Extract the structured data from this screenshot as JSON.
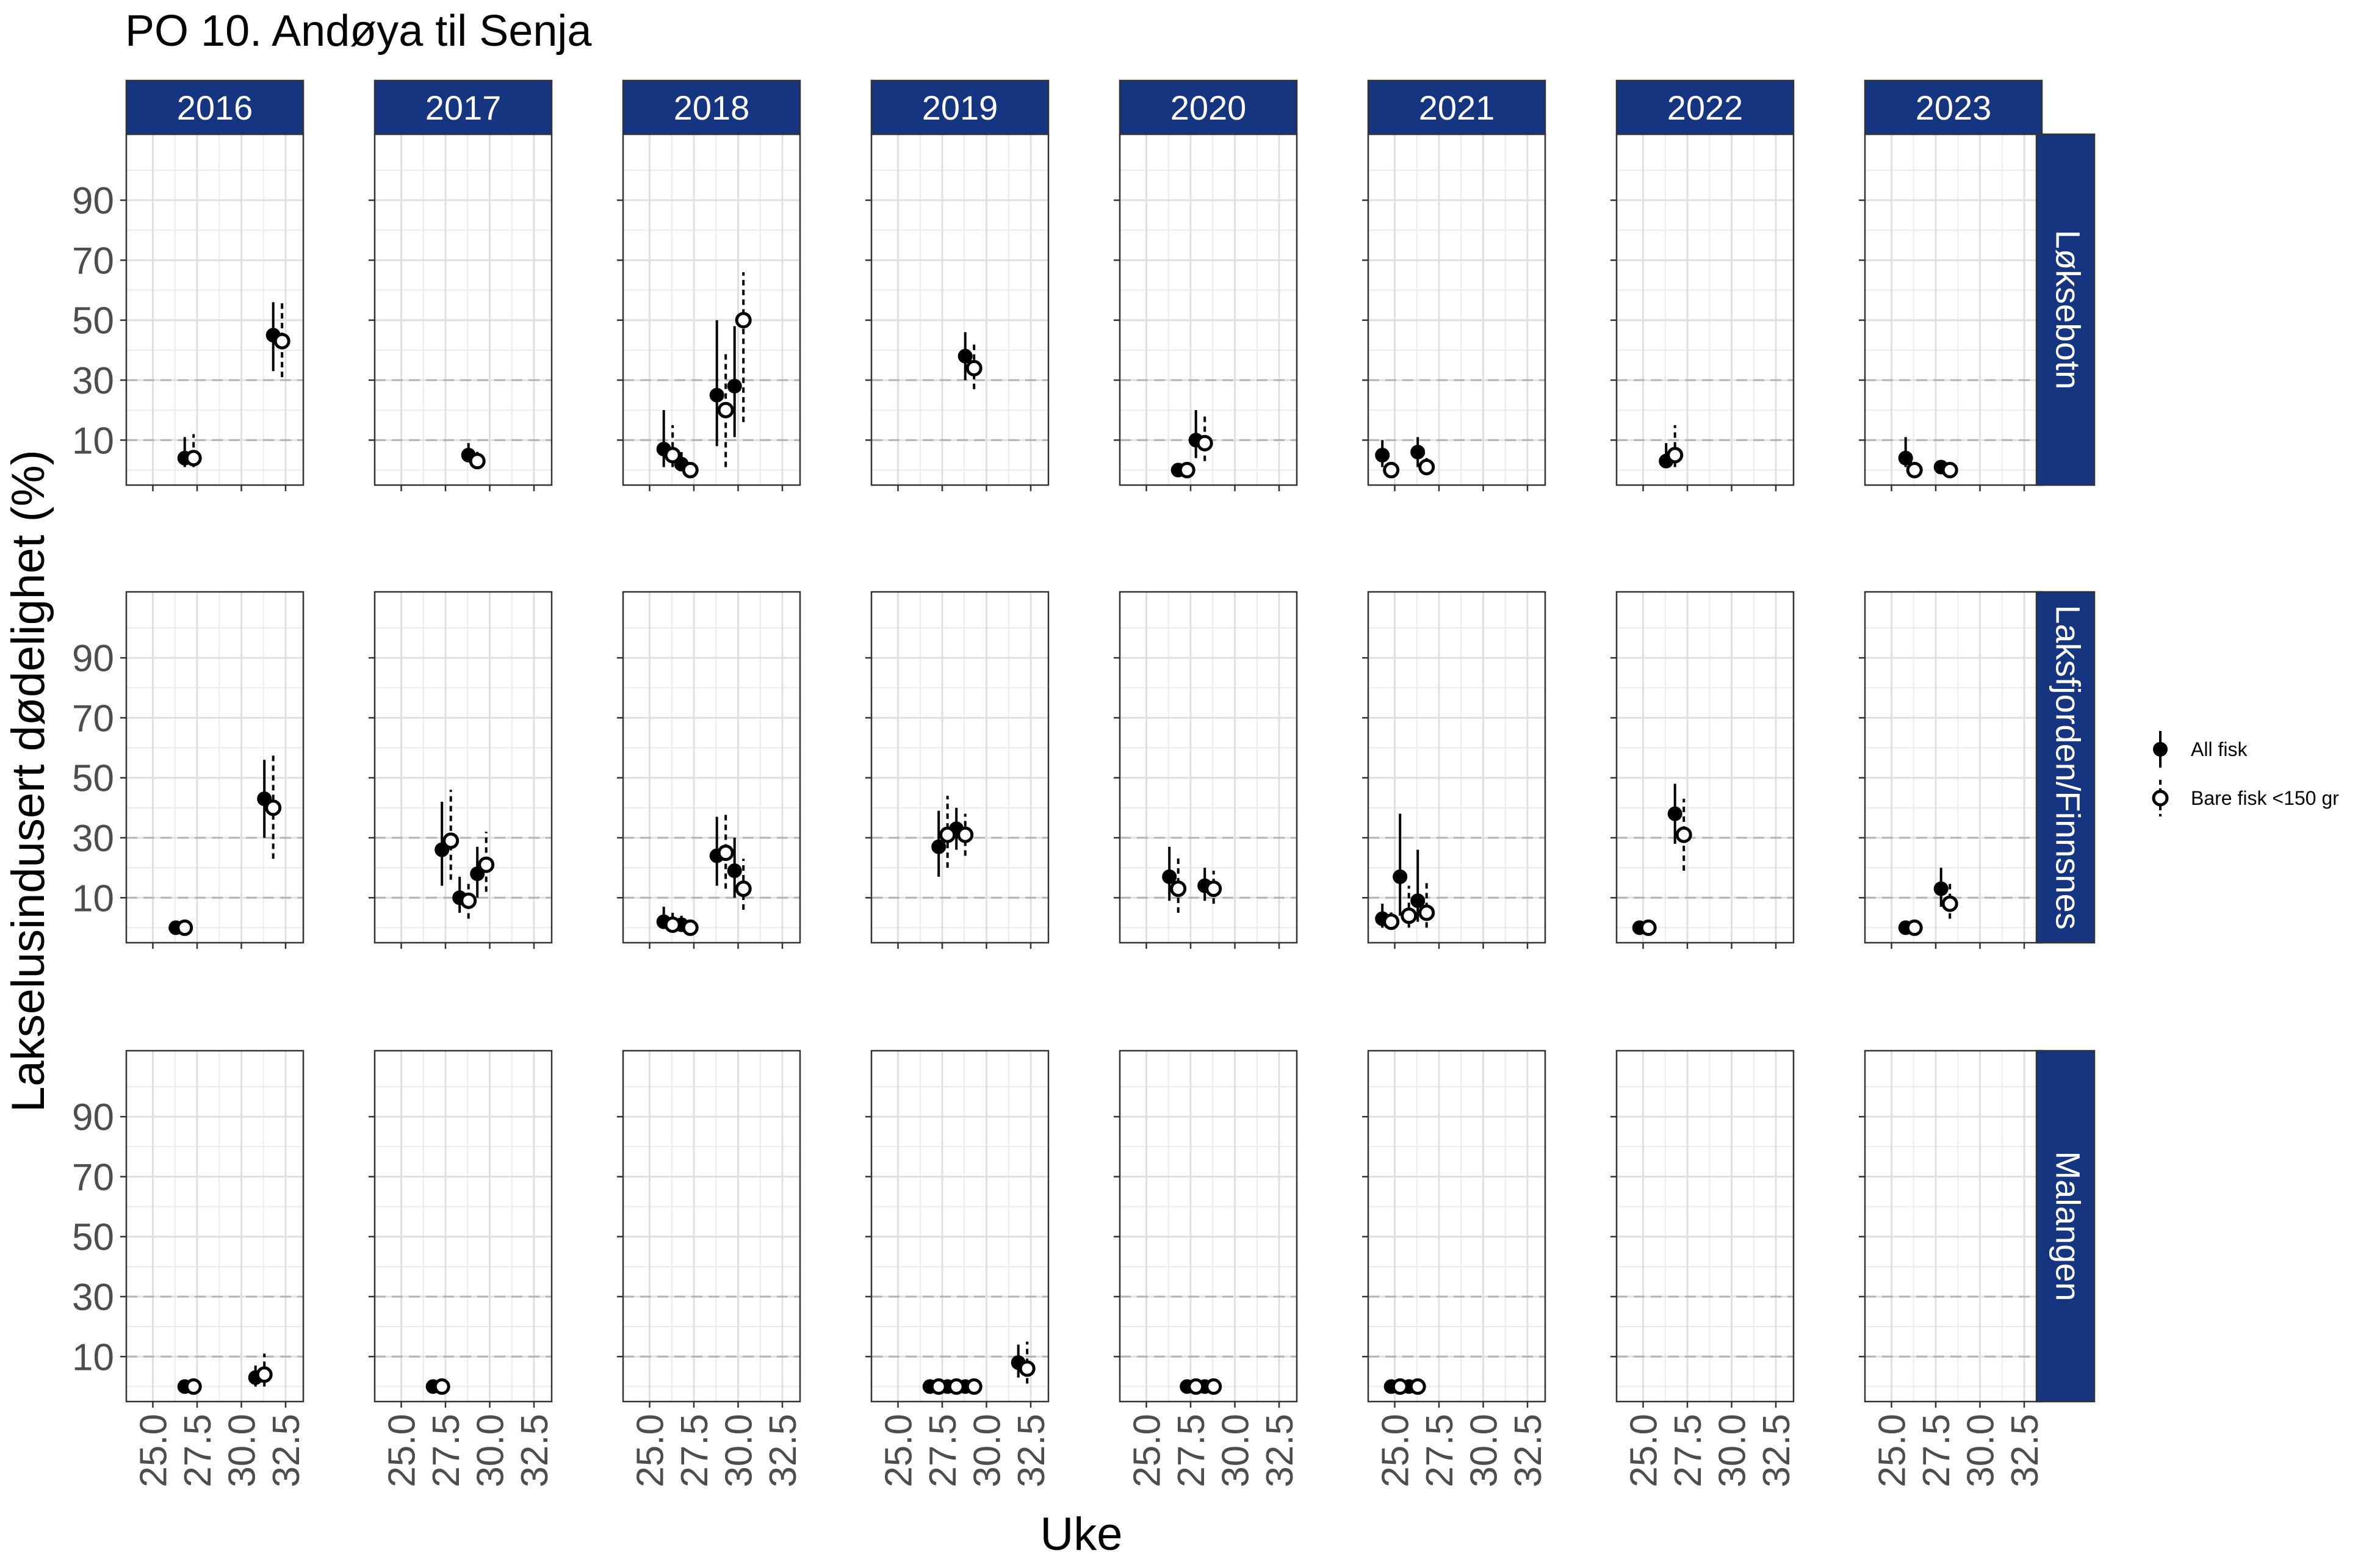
{
  "chart_data": {
    "type": "scatter",
    "title": "PO 10. Andøya til Senja",
    "xlabel": "Uke",
    "ylabel": "Lakselusindusert dødelighet (%)",
    "years": [
      "2016",
      "2017",
      "2018",
      "2019",
      "2020",
      "2021",
      "2022",
      "2023"
    ],
    "zones": [
      "Løksebotn",
      "Laksfjorden/Finnsnes",
      "Malangen"
    ],
    "xlim": [
      23.5,
      33.5
    ],
    "ylim": [
      -5,
      112
    ],
    "x_ticks": [
      "25.0",
      "27.5",
      "30.0",
      "32.5"
    ],
    "x_tick_values": [
      25,
      27.5,
      30,
      32.5
    ],
    "y_ticks": [
      "10",
      "30",
      "50",
      "70",
      "90"
    ],
    "y_tick_values": [
      10,
      30,
      50,
      70,
      90
    ],
    "reference_lines": [
      10,
      30
    ],
    "legend": {
      "position": "right",
      "items": [
        {
          "label": "All fisk",
          "style": "filled"
        },
        {
          "label": "Bare fisk <150 gr",
          "style": "open"
        }
      ]
    },
    "colors": {
      "strip": "#163581",
      "strip_text": "#ffffff",
      "reference": "#b3b3b3",
      "grid": "#ebebeb"
    },
    "series": [
      {
        "name": "All fisk",
        "points": [
          {
            "zone": "Løksebotn",
            "year": "2016",
            "x": 26.8,
            "y": 4,
            "lo": 1,
            "hi": 11
          },
          {
            "zone": "Løksebotn",
            "year": "2016",
            "x": 31.8,
            "y": 45,
            "lo": 33,
            "hi": 56
          },
          {
            "zone": "Løksebotn",
            "year": "2017",
            "x": 28.8,
            "y": 5,
            "lo": 3,
            "hi": 9
          },
          {
            "zone": "Løksebotn",
            "year": "2018",
            "x": 25.8,
            "y": 7,
            "lo": 1,
            "hi": 20
          },
          {
            "zone": "Løksebotn",
            "year": "2018",
            "x": 26.8,
            "y": 2,
            "lo": 0,
            "hi": 6
          },
          {
            "zone": "Løksebotn",
            "year": "2018",
            "x": 28.8,
            "y": 25,
            "lo": 8,
            "hi": 50
          },
          {
            "zone": "Løksebotn",
            "year": "2018",
            "x": 29.8,
            "y": 28,
            "lo": 11,
            "hi": 48
          },
          {
            "zone": "Løksebotn",
            "year": "2019",
            "x": 28.8,
            "y": 38,
            "lo": 30,
            "hi": 46
          },
          {
            "zone": "Løksebotn",
            "year": "2020",
            "x": 26.8,
            "y": 0,
            "lo": 0,
            "hi": 1
          },
          {
            "zone": "Løksebotn",
            "year": "2020",
            "x": 27.8,
            "y": 10,
            "lo": 4,
            "hi": 20
          },
          {
            "zone": "Løksebotn",
            "year": "2021",
            "x": 24.3,
            "y": 5,
            "lo": 1,
            "hi": 10
          },
          {
            "zone": "Løksebotn",
            "year": "2021",
            "x": 26.3,
            "y": 6,
            "lo": 1,
            "hi": 11
          },
          {
            "zone": "Løksebotn",
            "year": "2022",
            "x": 26.3,
            "y": 3,
            "lo": 1,
            "hi": 9
          },
          {
            "zone": "Løksebotn",
            "year": "2023",
            "x": 25.8,
            "y": 4,
            "lo": 1,
            "hi": 11
          },
          {
            "zone": "Løksebotn",
            "year": "2023",
            "x": 27.8,
            "y": 1,
            "lo": 0,
            "hi": 3
          },
          {
            "zone": "Laksfjorden/Finnsnes",
            "year": "2016",
            "x": 26.3,
            "y": 0,
            "lo": 0,
            "hi": 1
          },
          {
            "zone": "Laksfjorden/Finnsnes",
            "year": "2016",
            "x": 31.3,
            "y": 43,
            "lo": 30,
            "hi": 56
          },
          {
            "zone": "Laksfjorden/Finnsnes",
            "year": "2017",
            "x": 27.3,
            "y": 26,
            "lo": 14,
            "hi": 42
          },
          {
            "zone": "Laksfjorden/Finnsnes",
            "year": "2017",
            "x": 28.3,
            "y": 10,
            "lo": 5,
            "hi": 17
          },
          {
            "zone": "Laksfjorden/Finnsnes",
            "year": "2017",
            "x": 29.3,
            "y": 18,
            "lo": 10,
            "hi": 27
          },
          {
            "zone": "Laksfjorden/Finnsnes",
            "year": "2018",
            "x": 25.8,
            "y": 2,
            "lo": 0,
            "hi": 7
          },
          {
            "zone": "Laksfjorden/Finnsnes",
            "year": "2018",
            "x": 26.8,
            "y": 1,
            "lo": 0,
            "hi": 4
          },
          {
            "zone": "Laksfjorden/Finnsnes",
            "year": "2018",
            "x": 28.8,
            "y": 24,
            "lo": 14,
            "hi": 37
          },
          {
            "zone": "Laksfjorden/Finnsnes",
            "year": "2018",
            "x": 29.8,
            "y": 19,
            "lo": 10,
            "hi": 30
          },
          {
            "zone": "Laksfjorden/Finnsnes",
            "year": "2019",
            "x": 27.3,
            "y": 27,
            "lo": 17,
            "hi": 39
          },
          {
            "zone": "Laksfjorden/Finnsnes",
            "year": "2019",
            "x": 28.3,
            "y": 33,
            "lo": 26,
            "hi": 40
          },
          {
            "zone": "Laksfjorden/Finnsnes",
            "year": "2020",
            "x": 26.3,
            "y": 17,
            "lo": 9,
            "hi": 27
          },
          {
            "zone": "Laksfjorden/Finnsnes",
            "year": "2020",
            "x": 28.3,
            "y": 14,
            "lo": 9,
            "hi": 20
          },
          {
            "zone": "Laksfjorden/Finnsnes",
            "year": "2021",
            "x": 24.3,
            "y": 3,
            "lo": 0,
            "hi": 8
          },
          {
            "zone": "Laksfjorden/Finnsnes",
            "year": "2021",
            "x": 25.3,
            "y": 17,
            "lo": 4,
            "hi": 38
          },
          {
            "zone": "Laksfjorden/Finnsnes",
            "year": "2021",
            "x": 26.3,
            "y": 9,
            "lo": 2,
            "hi": 26
          },
          {
            "zone": "Laksfjorden/Finnsnes",
            "year": "2022",
            "x": 24.8,
            "y": 0,
            "lo": 0,
            "hi": 1
          },
          {
            "zone": "Laksfjorden/Finnsnes",
            "year": "2022",
            "x": 26.8,
            "y": 38,
            "lo": 28,
            "hi": 48
          },
          {
            "zone": "Laksfjorden/Finnsnes",
            "year": "2023",
            "x": 25.8,
            "y": 0,
            "lo": 0,
            "hi": 1
          },
          {
            "zone": "Laksfjorden/Finnsnes",
            "year": "2023",
            "x": 27.8,
            "y": 13,
            "lo": 7,
            "hi": 20
          },
          {
            "zone": "Malangen",
            "year": "2016",
            "x": 26.8,
            "y": 0,
            "lo": 0,
            "hi": 1
          },
          {
            "zone": "Malangen",
            "year": "2016",
            "x": 30.8,
            "y": 3,
            "lo": 0,
            "hi": 7
          },
          {
            "zone": "Malangen",
            "year": "2017",
            "x": 26.8,
            "y": 0,
            "lo": 0,
            "hi": 1
          },
          {
            "zone": "Malangen",
            "year": "2019",
            "x": 26.8,
            "y": 0,
            "lo": 0,
            "hi": 1
          },
          {
            "zone": "Malangen",
            "year": "2019",
            "x": 27.8,
            "y": 0,
            "lo": 0,
            "hi": 1
          },
          {
            "zone": "Malangen",
            "year": "2019",
            "x": 28.8,
            "y": 0,
            "lo": 0,
            "hi": 1
          },
          {
            "zone": "Malangen",
            "year": "2019",
            "x": 31.8,
            "y": 8,
            "lo": 3,
            "hi": 14
          },
          {
            "zone": "Malangen",
            "year": "2020",
            "x": 27.3,
            "y": 0,
            "lo": 0,
            "hi": 1
          },
          {
            "zone": "Malangen",
            "year": "2020",
            "x": 28.3,
            "y": 0,
            "lo": 0,
            "hi": 1
          },
          {
            "zone": "Malangen",
            "year": "2021",
            "x": 24.8,
            "y": 0,
            "lo": 0,
            "hi": 1
          },
          {
            "zone": "Malangen",
            "year": "2021",
            "x": 25.8,
            "y": 0,
            "lo": 0,
            "hi": 1
          }
        ]
      },
      {
        "name": "Bare fisk <150 gr",
        "points": [
          {
            "zone": "Løksebotn",
            "year": "2016",
            "x": 27.3,
            "y": 4,
            "lo": 1,
            "hi": 12
          },
          {
            "zone": "Løksebotn",
            "year": "2016",
            "x": 32.3,
            "y": 43,
            "lo": 31,
            "hi": 56
          },
          {
            "zone": "Løksebotn",
            "year": "2017",
            "x": 29.3,
            "y": 3,
            "lo": 1,
            "hi": 7
          },
          {
            "zone": "Løksebotn",
            "year": "2018",
            "x": 26.3,
            "y": 5,
            "lo": 1,
            "hi": 15
          },
          {
            "zone": "Løksebotn",
            "year": "2018",
            "x": 27.3,
            "y": 0,
            "lo": 0,
            "hi": 3
          },
          {
            "zone": "Løksebotn",
            "year": "2018",
            "x": 29.3,
            "y": 20,
            "lo": 1,
            "hi": 39
          },
          {
            "zone": "Løksebotn",
            "year": "2018",
            "x": 30.3,
            "y": 50,
            "lo": 16,
            "hi": 66
          },
          {
            "zone": "Løksebotn",
            "year": "2019",
            "x": 29.3,
            "y": 34,
            "lo": 27,
            "hi": 42
          },
          {
            "zone": "Løksebotn",
            "year": "2020",
            "x": 27.3,
            "y": 0,
            "lo": 0,
            "hi": 1
          },
          {
            "zone": "Løksebotn",
            "year": "2020",
            "x": 28.3,
            "y": 9,
            "lo": 3,
            "hi": 18
          },
          {
            "zone": "Løksebotn",
            "year": "2021",
            "x": 24.8,
            "y": 0,
            "lo": 0,
            "hi": 3
          },
          {
            "zone": "Løksebotn",
            "year": "2021",
            "x": 26.8,
            "y": 1,
            "lo": 0,
            "hi": 4
          },
          {
            "zone": "Løksebotn",
            "year": "2022",
            "x": 26.8,
            "y": 5,
            "lo": 1,
            "hi": 15
          },
          {
            "zone": "Løksebotn",
            "year": "2023",
            "x": 26.3,
            "y": 0,
            "lo": 0,
            "hi": 3
          },
          {
            "zone": "Løksebotn",
            "year": "2023",
            "x": 28.3,
            "y": 0,
            "lo": 0,
            "hi": 2
          },
          {
            "zone": "Laksfjorden/Finnsnes",
            "year": "2016",
            "x": 26.8,
            "y": 0,
            "lo": 0,
            "hi": 1
          },
          {
            "zone": "Laksfjorden/Finnsnes",
            "year": "2016",
            "x": 31.8,
            "y": 40,
            "lo": 23,
            "hi": 58
          },
          {
            "zone": "Laksfjorden/Finnsnes",
            "year": "2017",
            "x": 27.8,
            "y": 29,
            "lo": 16,
            "hi": 46
          },
          {
            "zone": "Laksfjorden/Finnsnes",
            "year": "2017",
            "x": 28.8,
            "y": 9,
            "lo": 3,
            "hi": 16
          },
          {
            "zone": "Laksfjorden/Finnsnes",
            "year": "2017",
            "x": 29.8,
            "y": 21,
            "lo": 12,
            "hi": 32
          },
          {
            "zone": "Laksfjorden/Finnsnes",
            "year": "2018",
            "x": 26.3,
            "y": 1,
            "lo": 0,
            "hi": 5
          },
          {
            "zone": "Laksfjorden/Finnsnes",
            "year": "2018",
            "x": 27.3,
            "y": 0,
            "lo": 0,
            "hi": 3
          },
          {
            "zone": "Laksfjorden/Finnsnes",
            "year": "2018",
            "x": 29.3,
            "y": 25,
            "lo": 13,
            "hi": 38
          },
          {
            "zone": "Laksfjorden/Finnsnes",
            "year": "2018",
            "x": 30.3,
            "y": 13,
            "lo": 6,
            "hi": 23
          },
          {
            "zone": "Laksfjorden/Finnsnes",
            "year": "2019",
            "x": 27.8,
            "y": 31,
            "lo": 20,
            "hi": 44
          },
          {
            "zone": "Laksfjorden/Finnsnes",
            "year": "2019",
            "x": 28.8,
            "y": 31,
            "lo": 24,
            "hi": 38
          },
          {
            "zone": "Laksfjorden/Finnsnes",
            "year": "2020",
            "x": 26.8,
            "y": 13,
            "lo": 5,
            "hi": 24
          },
          {
            "zone": "Laksfjorden/Finnsnes",
            "year": "2020",
            "x": 28.8,
            "y": 13,
            "lo": 8,
            "hi": 19
          },
          {
            "zone": "Laksfjorden/Finnsnes",
            "year": "2021",
            "x": 24.8,
            "y": 2,
            "lo": 0,
            "hi": 6
          },
          {
            "zone": "Laksfjorden/Finnsnes",
            "year": "2021",
            "x": 25.8,
            "y": 4,
            "lo": 0,
            "hi": 14
          },
          {
            "zone": "Laksfjorden/Finnsnes",
            "year": "2021",
            "x": 26.8,
            "y": 5,
            "lo": 0,
            "hi": 16
          },
          {
            "zone": "Laksfjorden/Finnsnes",
            "year": "2022",
            "x": 25.3,
            "y": 0,
            "lo": 0,
            "hi": 1
          },
          {
            "zone": "Laksfjorden/Finnsnes",
            "year": "2022",
            "x": 27.3,
            "y": 31,
            "lo": 19,
            "hi": 43
          },
          {
            "zone": "Laksfjorden/Finnsnes",
            "year": "2023",
            "x": 26.3,
            "y": 0,
            "lo": 0,
            "hi": 1
          },
          {
            "zone": "Laksfjorden/Finnsnes",
            "year": "2023",
            "x": 28.3,
            "y": 8,
            "lo": 3,
            "hi": 15
          },
          {
            "zone": "Malangen",
            "year": "2016",
            "x": 27.3,
            "y": 0,
            "lo": 0,
            "hi": 1
          },
          {
            "zone": "Malangen",
            "year": "2016",
            "x": 31.3,
            "y": 4,
            "lo": 0,
            "hi": 11
          },
          {
            "zone": "Malangen",
            "year": "2017",
            "x": 27.3,
            "y": 0,
            "lo": 0,
            "hi": 1
          },
          {
            "zone": "Malangen",
            "year": "2019",
            "x": 27.3,
            "y": 0,
            "lo": 0,
            "hi": 1
          },
          {
            "zone": "Malangen",
            "year": "2019",
            "x": 28.3,
            "y": 0,
            "lo": 0,
            "hi": 1
          },
          {
            "zone": "Malangen",
            "year": "2019",
            "x": 29.3,
            "y": 0,
            "lo": 0,
            "hi": 1
          },
          {
            "zone": "Malangen",
            "year": "2019",
            "x": 32.3,
            "y": 6,
            "lo": 1,
            "hi": 15
          },
          {
            "zone": "Malangen",
            "year": "2020",
            "x": 27.8,
            "y": 0,
            "lo": 0,
            "hi": 1
          },
          {
            "zone": "Malangen",
            "year": "2020",
            "x": 28.8,
            "y": 0,
            "lo": 0,
            "hi": 1
          },
          {
            "zone": "Malangen",
            "year": "2021",
            "x": 25.3,
            "y": 0,
            "lo": 0,
            "hi": 1
          },
          {
            "zone": "Malangen",
            "year": "2021",
            "x": 26.3,
            "y": 0,
            "lo": 0,
            "hi": 1
          }
        ]
      }
    ]
  }
}
